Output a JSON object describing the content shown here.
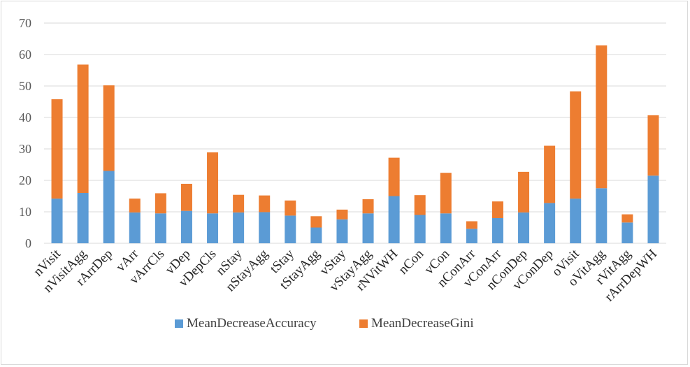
{
  "chart_data": {
    "type": "bar",
    "stacked": true,
    "title": "",
    "xlabel": "",
    "ylabel": "",
    "ylim": [
      0,
      70
    ],
    "yticks": [
      0,
      10,
      20,
      30,
      40,
      50,
      60,
      70
    ],
    "grid": true,
    "legend_position": "bottom",
    "categories": [
      "nVisit",
      "nVisitAgg",
      "rArrDep",
      "vArr",
      "vArrCls",
      "vDep",
      "vDepCls",
      "nStay",
      "nStayAgg",
      "tStay",
      "tStayAgg",
      "vStay",
      "vStayAgg",
      "rNVitWH",
      "nCon",
      "vCon",
      "nConArr",
      "vConArr",
      "nConDep",
      "vConDep",
      "oVisit",
      "oVitAgg",
      "rVitAgg",
      "rArrDepWH"
    ],
    "series": [
      {
        "name": "MeanDecreaseAccuracy",
        "color": "#5b9bd5",
        "values": [
          14.2,
          16.0,
          23.0,
          9.8,
          9.5,
          10.3,
          9.5,
          9.8,
          9.9,
          8.8,
          5.0,
          7.6,
          9.5,
          15.0,
          9.0,
          9.5,
          4.6,
          8.0,
          9.8,
          12.8,
          14.2,
          17.5,
          6.6,
          21.5
        ],
        "values_is_part": true
      },
      {
        "name": "MeanDecreaseGini",
        "color": "#ed7d31",
        "values": [
          31.6,
          40.8,
          27.2,
          4.4,
          6.4,
          8.6,
          19.4,
          5.6,
          5.3,
          4.8,
          3.6,
          3.1,
          4.5,
          12.2,
          6.3,
          12.9,
          2.4,
          5.3,
          12.9,
          18.2,
          34.1,
          45.4,
          2.6,
          19.2
        ]
      }
    ]
  }
}
